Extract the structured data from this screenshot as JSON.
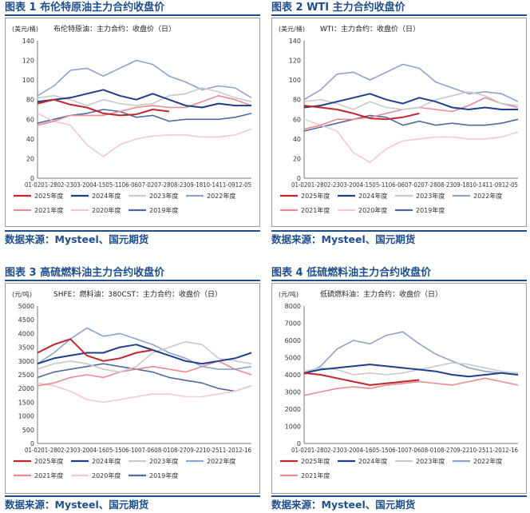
{
  "legend_labels": [
    "2025年度",
    "2024年度",
    "2023年度",
    "2022年度",
    "2021年度",
    "2020年度",
    "2019年度"
  ],
  "series_colors": {
    "2025年度": "#c0272d",
    "2024年度": "#1f3f8c",
    "2023年度": "#c9c9c9",
    "2022年度": "#8fa3c9",
    "2021年度": "#e88a93",
    "2020年度": "#f2c9cd",
    "2019年度": "#4f6aa3"
  },
  "panels": [
    {
      "title": "图表 1 布伦特原油主力合约收盘价",
      "source": "数据来源：Mysteel、国元期货",
      "chart_data": {
        "type": "line",
        "title": "布伦特原油主力合约收盘价",
        "subtitle": "布伦特原油：主力合约：收盘价（日）",
        "ylabel": "(美元/桶)",
        "ylim": [
          0,
          140
        ],
        "yticks": [
          0,
          20,
          40,
          60,
          80,
          100,
          120,
          140
        ],
        "x": [
          "01-02",
          "01-28",
          "02-23",
          "03-20",
          "04-15",
          "05-11",
          "06-06",
          "07-02",
          "07-28",
          "08-23",
          "09-18",
          "10-14",
          "11-09",
          "12-05"
        ],
        "xtick_text": "01-0201-2802-2303-2004-1505-1106-0607-0207-2808-2309-1810-1411-0912-05",
        "series": [
          {
            "name": "2025年度",
            "values": [
              76,
              80,
              75,
              72,
              66,
              64,
              65,
              70,
              68,
              null,
              null,
              null,
              null,
              null
            ]
          },
          {
            "name": "2024年度",
            "values": [
              78,
              80,
              82,
              86,
              90,
              84,
              80,
              86,
              80,
              74,
              72,
              76,
              74,
              74
            ]
          },
          {
            "name": "2023年度",
            "values": [
              82,
              84,
              80,
              74,
              80,
              76,
              74,
              76,
              84,
              86,
              92,
              88,
              82,
              78
            ]
          },
          {
            "name": "2022年度",
            "values": [
              84,
              94,
              110,
              112,
              104,
              112,
              120,
              116,
              104,
              98,
              90,
              94,
              92,
              82
            ]
          },
          {
            "name": "2021年度",
            "values": [
              54,
              58,
              64,
              64,
              64,
              68,
              72,
              74,
              72,
              72,
              78,
              84,
              80,
              74
            ]
          },
          {
            "name": "2020年度",
            "values": [
              66,
              58,
              54,
              34,
              22,
              34,
              40,
              43,
              44,
              44,
              42,
              42,
              44,
              50
            ]
          },
          {
            "name": "2019年度",
            "values": [
              56,
              60,
              64,
              66,
              70,
              68,
              62,
              64,
              58,
              60,
              60,
              60,
              62,
              66
            ]
          }
        ]
      }
    },
    {
      "title": "图表 2 WTI 主力合约收盘价",
      "source": "数据来源：Mysteel、国元期货",
      "chart_data": {
        "type": "line",
        "title": "WTI 主力合约收盘价",
        "subtitle": "WTI：主力合约：收盘价（日）",
        "ylabel": "(美元/桶)",
        "ylim": [
          0,
          140
        ],
        "yticks": [
          0,
          20,
          40,
          60,
          80,
          100,
          120,
          140
        ],
        "x": [
          "01-02",
          "01-28",
          "02-23",
          "03-20",
          "04-15",
          "05-11",
          "06-06",
          "07-02",
          "07-28",
          "08-23",
          "09-18",
          "10-14",
          "11-09",
          "12-05"
        ],
        "xtick_text": "01-0201-2802-2303-2004-1505-1106-0607-0207-2808-2309-1810-1411-0912-05",
        "series": [
          {
            "name": "2025年度",
            "values": [
              74,
              72,
              70,
              66,
              61,
              60,
              62,
              66,
              null,
              null,
              null,
              null,
              null,
              null
            ]
          },
          {
            "name": "2024年度",
            "values": [
              72,
              74,
              78,
              82,
              86,
              80,
              76,
              82,
              78,
              72,
              70,
              72,
              70,
              70
            ]
          },
          {
            "name": "2023年度",
            "values": [
              78,
              80,
              76,
              70,
              78,
              72,
              70,
              72,
              80,
              84,
              88,
              84,
              76,
              74
            ]
          },
          {
            "name": "2022年度",
            "values": [
              80,
              90,
              106,
              108,
              100,
              108,
              116,
              112,
              98,
              92,
              86,
              88,
              86,
              78
            ]
          },
          {
            "name": "2021年度",
            "values": [
              50,
              54,
              60,
              60,
              62,
              66,
              70,
              72,
              70,
              68,
              74,
              82,
              76,
              72
            ]
          },
          {
            "name": "2020年度",
            "values": [
              60,
              54,
              48,
              26,
              16,
              30,
              38,
              40,
              42,
              42,
              40,
              40,
              42,
              47
            ]
          },
          {
            "name": "2019年度",
            "values": [
              48,
              52,
              56,
              60,
              64,
              62,
              54,
              58,
              54,
              56,
              54,
              54,
              56,
              60
            ]
          }
        ]
      }
    },
    {
      "title": "图表 3 高硫燃料油主力合约收盘价",
      "source": "数据来源：Mysteel、国元期货",
      "chart_data": {
        "type": "line",
        "title": "高硫燃料油主力合约收盘价",
        "subtitle": "SHFE：燃料油：380CST：主力合约：收盘价（日）",
        "ylabel": "(元/吨)",
        "ylim": [
          0,
          5000
        ],
        "yticks": [
          0,
          500,
          1000,
          1500,
          2000,
          2500,
          3000,
          3500,
          4000,
          4500,
          5000
        ],
        "x": [
          "01-02",
          "01-28",
          "02-23",
          "03-20",
          "04-16",
          "05-15",
          "06-10",
          "07-06",
          "08-01",
          "08-27",
          "09-22",
          "10-25",
          "11-20",
          "12-16"
        ],
        "xtick_text": "01-0201-2802-2303-2004-1605-1506-1007-0608-0108-2709-2210-2511-2012-16",
        "series": [
          {
            "name": "2025年度",
            "values": [
              3300,
              3600,
              3800,
              3200,
              3000,
              3100,
              3300,
              3400,
              null,
              null,
              null,
              null,
              null,
              null
            ]
          },
          {
            "name": "2024年度",
            "values": [
              2900,
              3100,
              3200,
              3300,
              3300,
              3500,
              3600,
              3400,
              3200,
              3000,
              2900,
              3000,
              3100,
              3300
            ]
          },
          {
            "name": "2023年度",
            "values": [
              2700,
              2900,
              3000,
              2900,
              2700,
              2600,
              2800,
              3300,
              3500,
              3700,
              3600,
              3100,
              3000,
              2900
            ]
          },
          {
            "name": "2022年度",
            "values": [
              2900,
              3300,
              3800,
              4200,
              3900,
              4000,
              3800,
              3600,
              3300,
              3100,
              2800,
              2700,
              2700,
              2800
            ]
          },
          {
            "name": "2021年度",
            "values": [
              2100,
              2200,
              2400,
              2500,
              2400,
              2600,
              2700,
              2800,
              2700,
              2600,
              2800,
              3000,
              2700,
              2500
            ]
          },
          {
            "name": "2020年度",
            "values": [
              2200,
              2100,
              1900,
              1600,
              1500,
              1600,
              1700,
              1800,
              1800,
              1700,
              1700,
              1800,
              1900,
              2100
            ]
          },
          {
            "name": "2019年度",
            "values": [
              2400,
              2600,
              2700,
              2800,
              2900,
              2800,
              2700,
              2600,
              2400,
              2300,
              2200,
              2000,
              1900,
              2100
            ]
          }
        ]
      }
    },
    {
      "title": "图表 4 低硫燃料油主力合约收盘价",
      "source": "数据来源：Mysteel、国元期货",
      "chart_data": {
        "type": "line",
        "title": "低硫燃料油主力合约收盘价",
        "subtitle": "低硫燃料油：主力合约：收盘价（日）",
        "ylabel": "(元/吨)",
        "ylim": [
          0,
          8000
        ],
        "yticks": [
          0,
          1000,
          2000,
          3000,
          4000,
          5000,
          6000,
          7000,
          8000
        ],
        "x": [
          "01-02",
          "01-28",
          "02-23",
          "03-20",
          "04-16",
          "05-15",
          "06-10",
          "07-06",
          "08-01",
          "08-27",
          "09-22",
          "10-25",
          "11-20",
          "12-16"
        ],
        "xtick_text": "01-0201-2802-2303-2004-1605-1506-1007-0608-0108-2709-2210-2511-2012-16",
        "legend_order": [
          "2025年度",
          "2024年度",
          "2023年度",
          "2022年度",
          "2021年度"
        ],
        "series": [
          {
            "name": "2025年度",
            "values": [
              4100,
              4000,
              3800,
              3600,
              3400,
              3500,
              3600,
              3700,
              null,
              null,
              null,
              null,
              null,
              null
            ]
          },
          {
            "name": "2024年度",
            "values": [
              4100,
              4300,
              4400,
              4500,
              4600,
              4500,
              4400,
              4300,
              4200,
              4000,
              3900,
              4000,
              4100,
              4000
            ]
          },
          {
            "name": "2023年度",
            "values": [
              4200,
              4400,
              4300,
              4000,
              4100,
              4000,
              4100,
              4300,
              4500,
              4700,
              4600,
              4400,
              4200,
              4100
            ]
          },
          {
            "name": "2022年度",
            "values": [
              4000,
              4500,
              5500,
              6000,
              5800,
              6300,
              6500,
              5800,
              5200,
              4800,
              4400,
              4200,
              4100,
              4000
            ]
          },
          {
            "name": "2021年度",
            "values": [
              2800,
              3000,
              3200,
              3300,
              3200,
              3400,
              3500,
              3600,
              3500,
              3400,
              3600,
              3800,
              3600,
              3400
            ]
          }
        ]
      }
    }
  ]
}
